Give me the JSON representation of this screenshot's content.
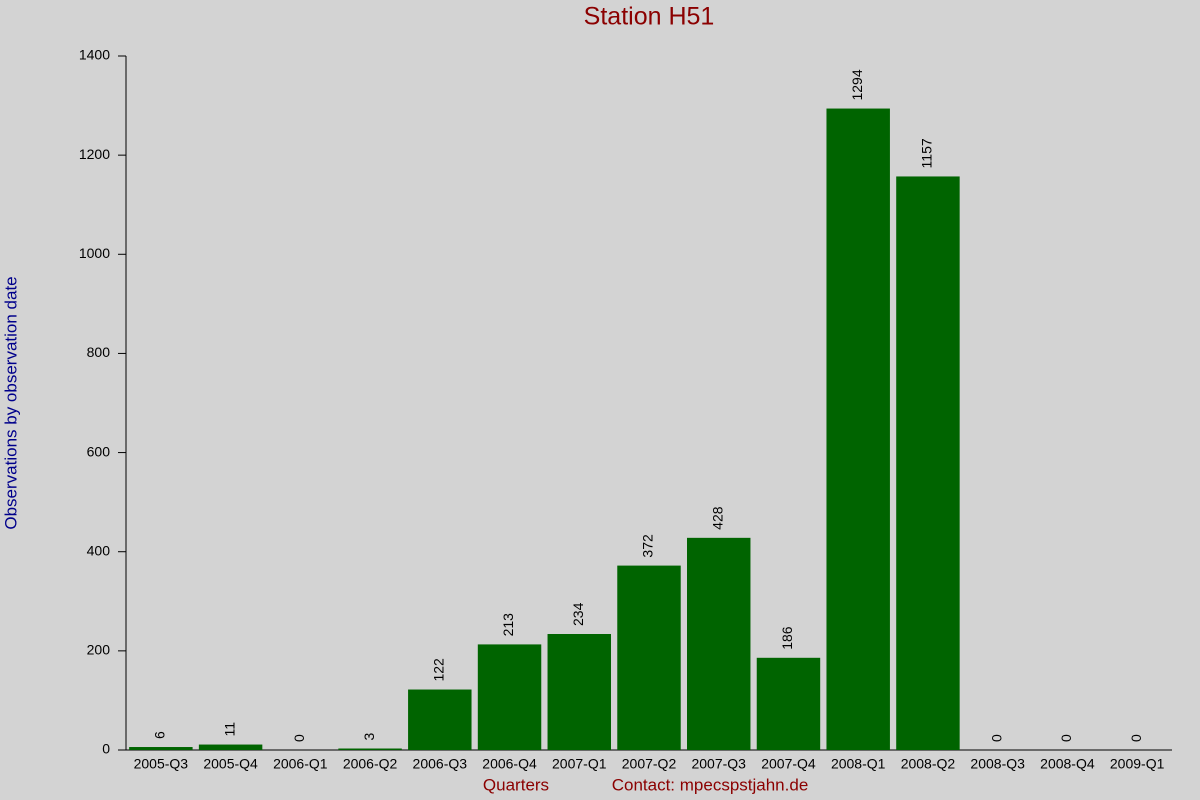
{
  "chart_data": {
    "type": "bar",
    "title": "Station H51",
    "y_label": "Observations by observation date",
    "x_label": "Quarters",
    "note": "Contact: mpecspstjahn.de",
    "categories": [
      "2005-Q3",
      "2005-Q4",
      "2006-Q1",
      "2006-Q2",
      "2006-Q3",
      "2006-Q4",
      "2007-Q1",
      "2007-Q2",
      "2007-Q3",
      "2007-Q4",
      "2008-Q1",
      "2008-Q2",
      "2008-Q3",
      "2008-Q4",
      "2009-Q1"
    ],
    "values": [
      6,
      11,
      0,
      3,
      122,
      213,
      234,
      372,
      428,
      186,
      1294,
      1157,
      0,
      0,
      0
    ],
    "color": "#006400",
    "ylim": [
      0,
      1400
    ],
    "yticks": [
      0,
      200,
      400,
      600,
      800,
      1000,
      1200,
      1400
    ]
  }
}
